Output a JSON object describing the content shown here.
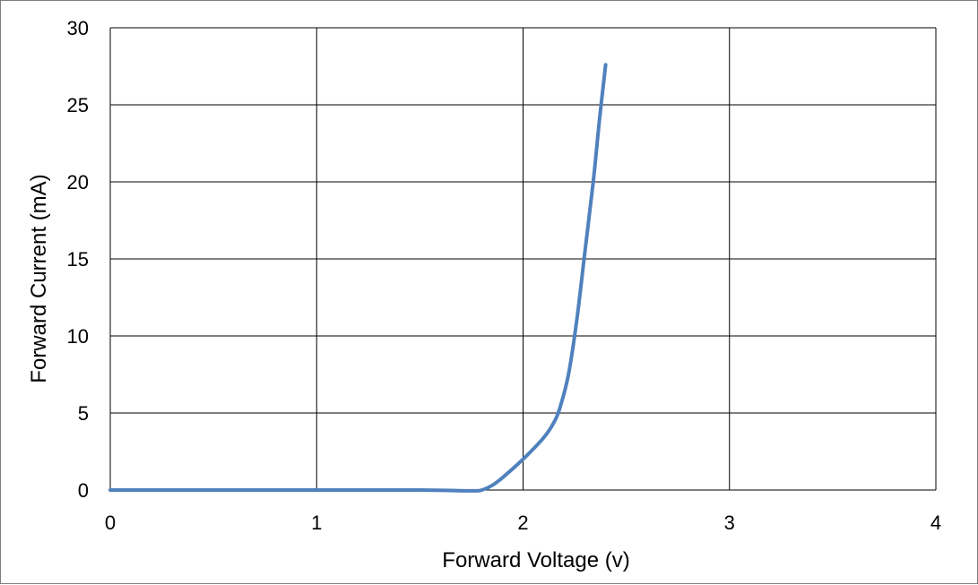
{
  "chart_data": {
    "type": "line",
    "title": "",
    "xlabel": "Forward Voltage (v)",
    "ylabel": "Forward Current (mA)",
    "xlim": [
      0,
      4
    ],
    "ylim": [
      0,
      30
    ],
    "x_ticks": [
      0,
      1,
      2,
      3,
      4
    ],
    "y_ticks": [
      0,
      5,
      10,
      15,
      20,
      25,
      30
    ],
    "x_tick_labels": [
      "0",
      "1",
      "2",
      "3",
      "4"
    ],
    "y_tick_labels": [
      "0",
      "5",
      "10",
      "15",
      "20",
      "25",
      "30"
    ],
    "grid": true,
    "legend": "none",
    "series": [
      {
        "color": "#4f81bd",
        "points": [
          {
            "x": 0.0,
            "y": 0.0
          },
          {
            "x": 0.5,
            "y": 0.0
          },
          {
            "x": 1.0,
            "y": 0.0
          },
          {
            "x": 1.5,
            "y": 0.0
          },
          {
            "x": 1.75,
            "y": -0.05
          },
          {
            "x": 1.8,
            "y": 0.0
          },
          {
            "x": 1.85,
            "y": 0.3
          },
          {
            "x": 1.9,
            "y": 0.8
          },
          {
            "x": 2.0,
            "y": 2.0
          },
          {
            "x": 2.1,
            "y": 3.4
          },
          {
            "x": 2.15,
            "y": 4.4
          },
          {
            "x": 2.18,
            "y": 5.4
          },
          {
            "x": 2.22,
            "y": 7.5
          },
          {
            "x": 2.26,
            "y": 11.0
          },
          {
            "x": 2.3,
            "y": 15.5
          },
          {
            "x": 2.34,
            "y": 20.0
          },
          {
            "x": 2.37,
            "y": 24.0
          },
          {
            "x": 2.4,
            "y": 27.6
          }
        ]
      }
    ]
  }
}
